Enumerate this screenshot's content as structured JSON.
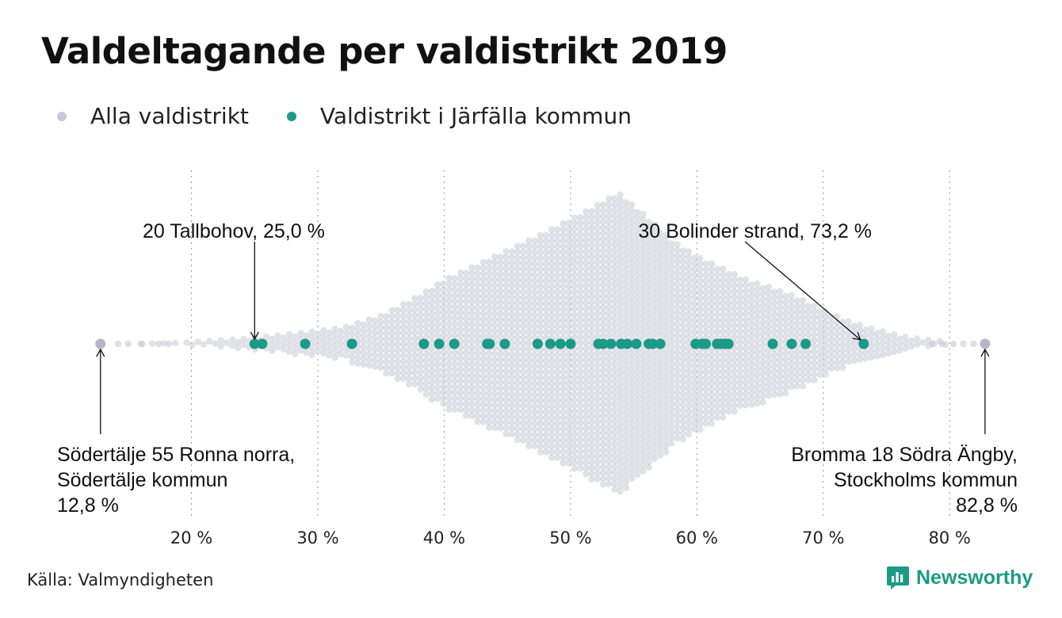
{
  "title": "Valdeltagande per valdistrikt 2019",
  "source": "Källa: Valmyndigheten",
  "brand": {
    "name": "Newsworthy",
    "icon": "chart-speech-bubble-icon",
    "color": "#1a9a87"
  },
  "legend": [
    {
      "label": "Alla valdistrikt",
      "color": "#c9c8d6"
    },
    {
      "label": "Valdistrikt i Järfälla kommun",
      "color": "#1a9a87"
    }
  ],
  "chart_data": {
    "type": "scatter",
    "subtype": "beeswarm",
    "xlim": [
      12,
      84
    ],
    "x_ticks": [
      20,
      30,
      40,
      50,
      60,
      70,
      80
    ],
    "x_tick_labels": [
      "20 %",
      "30 %",
      "40 %",
      "50 %",
      "60 %",
      "70 %",
      "80 %"
    ],
    "grid": "vertical dotted",
    "series": [
      {
        "name": "Alla valdistrikt",
        "color": "#c9c8d6",
        "distribution": {
          "min": 12.8,
          "max": 82.8,
          "peak": 53.8,
          "profile": [
            [
              12.8,
              0
            ],
            [
              16,
              0
            ],
            [
              18.5,
              1
            ],
            [
              20,
              2
            ],
            [
              22,
              4
            ],
            [
              24,
              6
            ],
            [
              26,
              9
            ],
            [
              29,
              14
            ],
            [
              32,
              20
            ],
            [
              35,
              35
            ],
            [
              38,
              60
            ],
            [
              40,
              80
            ],
            [
              44,
              110
            ],
            [
              48,
              140
            ],
            [
              51,
              165
            ],
            [
              53.8,
              190
            ],
            [
              56,
              160
            ],
            [
              58,
              130
            ],
            [
              60,
              110
            ],
            [
              62,
              95
            ],
            [
              64,
              80
            ],
            [
              66,
              70
            ],
            [
              68,
              58
            ],
            [
              70,
              42
            ],
            [
              72,
              28
            ],
            [
              74,
              18
            ],
            [
              76,
              10
            ],
            [
              78,
              5
            ],
            [
              80,
              2
            ],
            [
              82.8,
              0
            ]
          ]
        },
        "extremes": [
          12.8,
          82.8
        ]
      },
      {
        "name": "Valdistrikt i Järfälla kommun",
        "color": "#1a9a87",
        "values": [
          25.0,
          25.6,
          29.0,
          32.7,
          38.4,
          39.6,
          40.8,
          43.4,
          43.6,
          44.8,
          47.4,
          48.4,
          49.2,
          50.0,
          52.2,
          52.6,
          53.2,
          54.0,
          54.5,
          55.2,
          56.2,
          56.5,
          57.1,
          59.9,
          60.4,
          60.7,
          61.6,
          61.9,
          62.2,
          62.5,
          66.0,
          67.5,
          68.6,
          73.2
        ]
      }
    ],
    "annotations": [
      {
        "lines": [
          "20 Tallbohov, 25,0 %"
        ],
        "x": 25.0,
        "position": "above"
      },
      {
        "lines": [
          "30 Bolinder strand, 73,2 %"
        ],
        "x": 73.2,
        "position": "above"
      },
      {
        "lines": [
          "Södertälje 55 Ronna norra,",
          "Södertälje kommun",
          "12,8 %"
        ],
        "x": 12.8,
        "position": "below-left"
      },
      {
        "lines": [
          "Bromma 18 Södra Ängby,",
          "Stockholms kommun",
          "82,8 %"
        ],
        "x": 82.8,
        "position": "below-right"
      }
    ]
  }
}
